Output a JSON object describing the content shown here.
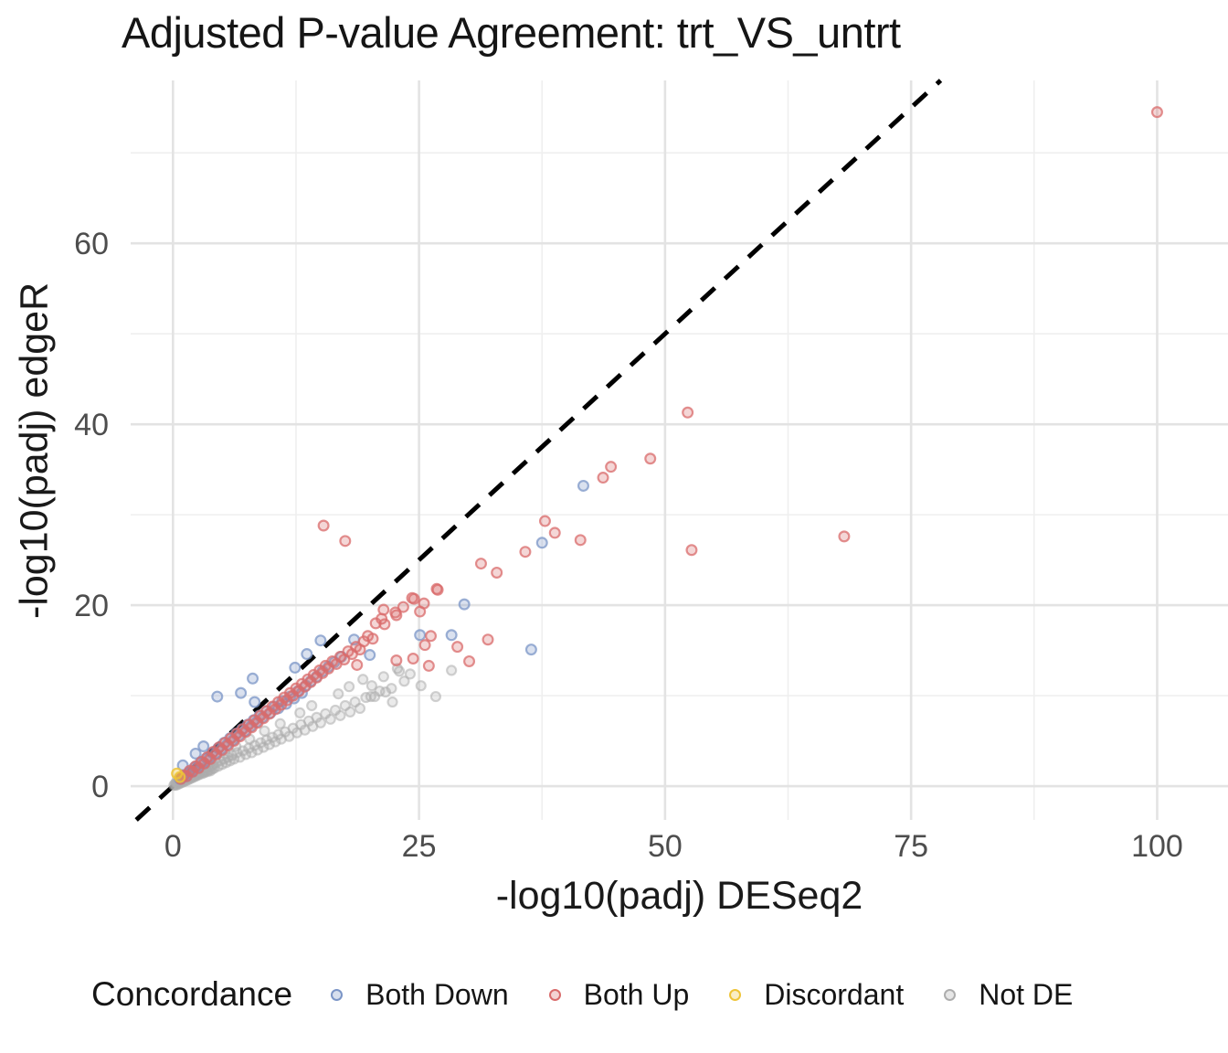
{
  "legend": {
    "title": "Concordance",
    "items": [
      {
        "label": "Both Down",
        "color": "#7B95C7"
      },
      {
        "label": "Both Up",
        "color": "#D96B6B"
      },
      {
        "label": "Discordant",
        "color": "#EFC437"
      },
      {
        "label": "Not DE",
        "color": "#ADADAD"
      }
    ]
  },
  "chart_data": {
    "type": "scatter",
    "title": "Adjusted P-value Agreement: trt_VS_untrt",
    "xlabel": "-log10(padj) DESeq2",
    "ylabel": "-log10(padj) edgeR",
    "xlim": [
      -4.3,
      107.2
    ],
    "ylim": [
      -3.73,
      78.0
    ],
    "x_ticks": [
      0,
      25,
      50,
      75,
      100
    ],
    "x_minor_gridlines": [
      12.5,
      37.5,
      62.5,
      87.5
    ],
    "y_ticks": [
      0,
      20,
      40,
      60
    ],
    "y_minor_gridlines": [
      10,
      30,
      50,
      70
    ],
    "grid": true,
    "legend_position": "bottom",
    "reference_line": {
      "type": "identity",
      "style": "dashed",
      "color": "#000000"
    },
    "series": [
      {
        "name": "Not DE",
        "color": "#ADADAD",
        "point_radius": 5.0,
        "stroke_opacity": 0.55,
        "fill_opacity": 0.25,
        "points": [
          [
            0.1,
            0.1
          ],
          [
            0.2,
            0.2
          ],
          [
            0.3,
            0.1
          ],
          [
            0.3,
            0.4
          ],
          [
            0.4,
            0.3
          ],
          [
            0.5,
            0.2
          ],
          [
            0.5,
            0.5
          ],
          [
            0.6,
            0.4
          ],
          [
            0.7,
            0.3
          ],
          [
            0.7,
            0.6
          ],
          [
            0.8,
            0.5
          ],
          [
            0.9,
            0.4
          ],
          [
            0.9,
            0.8
          ],
          [
            1.0,
            0.6
          ],
          [
            1.1,
            0.5
          ],
          [
            1.1,
            0.9
          ],
          [
            1.2,
            0.7
          ],
          [
            1.3,
            0.6
          ],
          [
            1.3,
            1.0
          ],
          [
            1.4,
            0.8
          ],
          [
            1.5,
            0.7
          ],
          [
            1.5,
            1.1
          ],
          [
            1.6,
            0.9
          ],
          [
            1.7,
            0.8
          ],
          [
            1.7,
            1.2
          ],
          [
            1.8,
            1.0
          ],
          [
            1.9,
            0.9
          ],
          [
            1.9,
            1.3
          ],
          [
            2.0,
            1.1
          ],
          [
            2.1,
            1.0
          ],
          [
            2.1,
            1.5
          ],
          [
            2.2,
            1.2
          ],
          [
            2.3,
            1.1
          ],
          [
            2.3,
            1.6
          ],
          [
            2.4,
            1.3
          ],
          [
            2.5,
            1.2
          ],
          [
            2.5,
            1.7
          ],
          [
            2.6,
            1.4
          ],
          [
            2.7,
            1.3
          ],
          [
            2.8,
            1.8
          ],
          [
            2.9,
            1.5
          ],
          [
            3.0,
            1.4
          ],
          [
            3.0,
            1.9
          ],
          [
            3.1,
            1.6
          ],
          [
            3.2,
            1.5
          ],
          [
            3.3,
            2.0
          ],
          [
            3.4,
            1.7
          ],
          [
            3.5,
            1.6
          ],
          [
            3.6,
            2.1
          ],
          [
            3.7,
            1.8
          ],
          [
            3.8,
            1.7
          ],
          [
            3.9,
            2.2
          ],
          [
            4.0,
            1.9
          ],
          [
            4.1,
            2.4
          ],
          [
            4.2,
            2.0
          ],
          [
            4.4,
            2.6
          ],
          [
            4.6,
            2.2
          ],
          [
            4.8,
            2.8
          ],
          [
            5.0,
            2.4
          ],
          [
            5.2,
            3.0
          ],
          [
            5.3,
            3.6
          ],
          [
            5.4,
            2.6
          ],
          [
            5.6,
            3.2
          ],
          [
            5.8,
            2.8
          ],
          [
            6.0,
            3.4
          ],
          [
            6.2,
            3.0
          ],
          [
            6.4,
            4.4
          ],
          [
            6.5,
            3.7
          ],
          [
            6.8,
            3.2
          ],
          [
            7.1,
            3.9
          ],
          [
            7.4,
            3.5
          ],
          [
            7.7,
            4.2
          ],
          [
            7.8,
            5.2
          ],
          [
            8.0,
            3.7
          ],
          [
            8.3,
            4.5
          ],
          [
            8.6,
            4.0
          ],
          [
            8.9,
            4.8
          ],
          [
            9.2,
            4.3
          ],
          [
            9.3,
            6.1
          ],
          [
            9.5,
            5.1
          ],
          [
            9.8,
            4.6
          ],
          [
            10.1,
            5.4
          ],
          [
            10.4,
            4.9
          ],
          [
            10.7,
            5.7
          ],
          [
            10.9,
            6.9
          ],
          [
            11.0,
            5.2
          ],
          [
            11.4,
            6.0
          ],
          [
            11.8,
            5.5
          ],
          [
            12.2,
            6.4
          ],
          [
            12.6,
            5.9
          ],
          [
            12.9,
            8.1
          ],
          [
            13.0,
            6.8
          ],
          [
            13.4,
            6.2
          ],
          [
            13.8,
            7.2
          ],
          [
            14.1,
            8.9
          ],
          [
            14.2,
            6.6
          ],
          [
            14.6,
            7.6
          ],
          [
            15.0,
            7.0
          ],
          [
            15.5,
            8.0
          ],
          [
            16.0,
            7.4
          ],
          [
            16.5,
            8.4
          ],
          [
            16.8,
            10.2
          ],
          [
            17.0,
            7.8
          ],
          [
            17.5,
            8.9
          ],
          [
            17.9,
            11.0
          ],
          [
            18.0,
            8.2
          ],
          [
            18.5,
            9.3
          ],
          [
            19.0,
            8.6
          ],
          [
            19.3,
            11.8
          ],
          [
            19.6,
            9.8
          ],
          [
            20.1,
            9.9
          ],
          [
            20.2,
            11.1
          ],
          [
            20.5,
            9.9
          ],
          [
            21.0,
            10.5
          ],
          [
            21.4,
            12.1
          ],
          [
            21.6,
            10.4
          ],
          [
            22.2,
            10.8
          ],
          [
            22.3,
            9.3
          ],
          [
            22.8,
            13.0
          ],
          [
            23.0,
            12.7
          ],
          [
            23.5,
            11.6
          ],
          [
            24.1,
            12.4
          ],
          [
            25.2,
            11.1
          ],
          [
            26.7,
            9.9
          ],
          [
            28.3,
            12.8
          ]
        ]
      },
      {
        "name": "Both Down",
        "color": "#7B95C7",
        "point_radius": 5.4,
        "stroke_opacity": 0.75,
        "fill_opacity": 0.28,
        "points": [
          [
            0.7,
            0.8
          ],
          [
            1.0,
            1.0
          ],
          [
            1.3,
            1.1
          ],
          [
            1.6,
            1.5
          ],
          [
            1.9,
            1.6
          ],
          [
            2.2,
            2.1
          ],
          [
            2.5,
            2.1
          ],
          [
            2.8,
            2.6
          ],
          [
            3.1,
            2.6
          ],
          [
            3.4,
            3.1
          ],
          [
            3.7,
            3.1
          ],
          [
            4.0,
            3.7
          ],
          [
            4.3,
            3.6
          ],
          [
            4.6,
            4.2
          ],
          [
            4.9,
            4.1
          ],
          [
            5.2,
            4.8
          ],
          [
            5.5,
            4.6
          ],
          [
            5.8,
            5.3
          ],
          [
            6.1,
            5.1
          ],
          [
            6.4,
            5.8
          ],
          [
            6.7,
            5.6
          ],
          [
            7.0,
            6.3
          ],
          [
            7.3,
            6.1
          ],
          [
            7.6,
            6.8
          ],
          [
            7.9,
            6.6
          ],
          [
            8.2,
            7.3
          ],
          [
            8.5,
            7.1
          ],
          [
            8.8,
            7.8
          ],
          [
            9.1,
            7.6
          ],
          [
            9.5,
            8.3
          ],
          [
            9.9,
            8.1
          ],
          [
            10.3,
            8.8
          ],
          [
            10.7,
            8.6
          ],
          [
            11.1,
            9.4
          ],
          [
            11.5,
            9.1
          ],
          [
            11.9,
            9.9
          ],
          [
            12.3,
            9.7
          ],
          [
            12.7,
            10.5
          ],
          [
            13.1,
            10.3
          ],
          [
            13.5,
            11.1
          ],
          [
            14.0,
            11.6
          ],
          [
            14.6,
            12.1
          ],
          [
            15.2,
            12.7
          ],
          [
            15.8,
            13.2
          ],
          [
            16.4,
            13.7
          ],
          [
            17.1,
            14.3
          ],
          [
            12.4,
            13.1
          ],
          [
            1.0,
            2.3
          ],
          [
            2.3,
            3.6
          ],
          [
            3.1,
            4.4
          ],
          [
            4.5,
            9.9
          ],
          [
            6.9,
            10.3
          ],
          [
            8.1,
            11.9
          ],
          [
            8.3,
            9.3
          ],
          [
            13.6,
            14.6
          ],
          [
            15.0,
            16.1
          ],
          [
            18.4,
            16.2
          ],
          [
            20.0,
            14.5
          ],
          [
            25.1,
            16.7
          ],
          [
            28.3,
            16.7
          ],
          [
            29.6,
            20.1
          ],
          [
            36.4,
            15.1
          ],
          [
            37.5,
            26.9
          ],
          [
            41.7,
            33.2
          ]
        ]
      },
      {
        "name": "Both Up",
        "color": "#D96B6B",
        "point_radius": 5.4,
        "stroke_opacity": 0.75,
        "fill_opacity": 0.28,
        "points": [
          [
            0.8,
            0.8
          ],
          [
            1.1,
            1.2
          ],
          [
            1.4,
            1.1
          ],
          [
            1.7,
            1.7
          ],
          [
            2.0,
            1.6
          ],
          [
            2.3,
            2.2
          ],
          [
            2.6,
            2.0
          ],
          [
            2.9,
            2.7
          ],
          [
            3.2,
            2.5
          ],
          [
            3.5,
            3.2
          ],
          [
            3.8,
            3.0
          ],
          [
            4.1,
            3.8
          ],
          [
            4.4,
            3.5
          ],
          [
            4.7,
            4.3
          ],
          [
            5.0,
            4.0
          ],
          [
            5.3,
            4.8
          ],
          [
            5.6,
            4.5
          ],
          [
            5.9,
            5.3
          ],
          [
            6.2,
            5.0
          ],
          [
            6.5,
            5.8
          ],
          [
            6.8,
            5.5
          ],
          [
            7.1,
            6.3
          ],
          [
            7.4,
            6.0
          ],
          [
            7.7,
            6.8
          ],
          [
            8.0,
            6.5
          ],
          [
            8.3,
            7.3
          ],
          [
            8.6,
            7.0
          ],
          [
            8.9,
            7.8
          ],
          [
            9.2,
            7.5
          ],
          [
            9.5,
            8.3
          ],
          [
            9.8,
            8.0
          ],
          [
            10.1,
            8.8
          ],
          [
            10.4,
            8.5
          ],
          [
            10.7,
            9.3
          ],
          [
            11.0,
            9.0
          ],
          [
            11.3,
            9.8
          ],
          [
            11.6,
            9.5
          ],
          [
            11.9,
            10.3
          ],
          [
            12.2,
            10.0
          ],
          [
            12.5,
            10.8
          ],
          [
            12.8,
            10.5
          ],
          [
            13.1,
            11.3
          ],
          [
            13.4,
            11.0
          ],
          [
            13.7,
            11.8
          ],
          [
            14.0,
            11.5
          ],
          [
            14.3,
            12.3
          ],
          [
            14.6,
            12.0
          ],
          [
            14.9,
            12.8
          ],
          [
            15.2,
            12.5
          ],
          [
            15.5,
            13.3
          ],
          [
            15.8,
            13.0
          ],
          [
            16.2,
            13.8
          ],
          [
            16.6,
            13.5
          ],
          [
            17.0,
            14.3
          ],
          [
            17.4,
            14.0
          ],
          [
            17.8,
            14.9
          ],
          [
            18.2,
            14.6
          ],
          [
            18.6,
            15.4
          ],
          [
            19.0,
            15.1
          ],
          [
            19.4,
            16.0
          ],
          [
            19.8,
            16.6
          ],
          [
            20.3,
            16.3
          ],
          [
            20.6,
            18.0
          ],
          [
            21.2,
            18.5
          ],
          [
            21.4,
            19.5
          ],
          [
            21.5,
            17.9
          ],
          [
            22.6,
            19.2
          ],
          [
            22.7,
            18.9
          ],
          [
            23.4,
            19.8
          ],
          [
            24.3,
            20.8
          ],
          [
            24.5,
            20.7
          ],
          [
            25.1,
            19.3
          ],
          [
            25.5,
            20.2
          ],
          [
            26.8,
            21.8
          ],
          [
            26.9,
            21.7
          ],
          [
            18.7,
            13.4
          ],
          [
            22.7,
            13.9
          ],
          [
            24.4,
            14.1
          ],
          [
            26.0,
            13.3
          ],
          [
            28.9,
            15.4
          ],
          [
            30.1,
            13.8
          ],
          [
            25.6,
            15.6
          ],
          [
            26.2,
            16.6
          ],
          [
            32.0,
            16.2
          ],
          [
            15.3,
            28.8
          ],
          [
            17.5,
            27.1
          ],
          [
            31.3,
            24.6
          ],
          [
            32.9,
            23.6
          ],
          [
            35.8,
            25.9
          ],
          [
            37.8,
            29.3
          ],
          [
            38.8,
            28.0
          ],
          [
            41.4,
            27.2
          ],
          [
            43.7,
            34.1
          ],
          [
            44.5,
            35.3
          ],
          [
            48.5,
            36.2
          ],
          [
            52.3,
            41.3
          ],
          [
            52.7,
            26.1
          ],
          [
            68.2,
            27.6
          ],
          [
            100.0,
            74.5
          ]
        ]
      },
      {
        "name": "Discordant",
        "color": "#EFC437",
        "point_radius": 5.4,
        "stroke_opacity": 0.85,
        "fill_opacity": 0.35,
        "points": [
          [
            0.4,
            1.4
          ],
          [
            0.7,
            1.0
          ]
        ]
      }
    ]
  }
}
